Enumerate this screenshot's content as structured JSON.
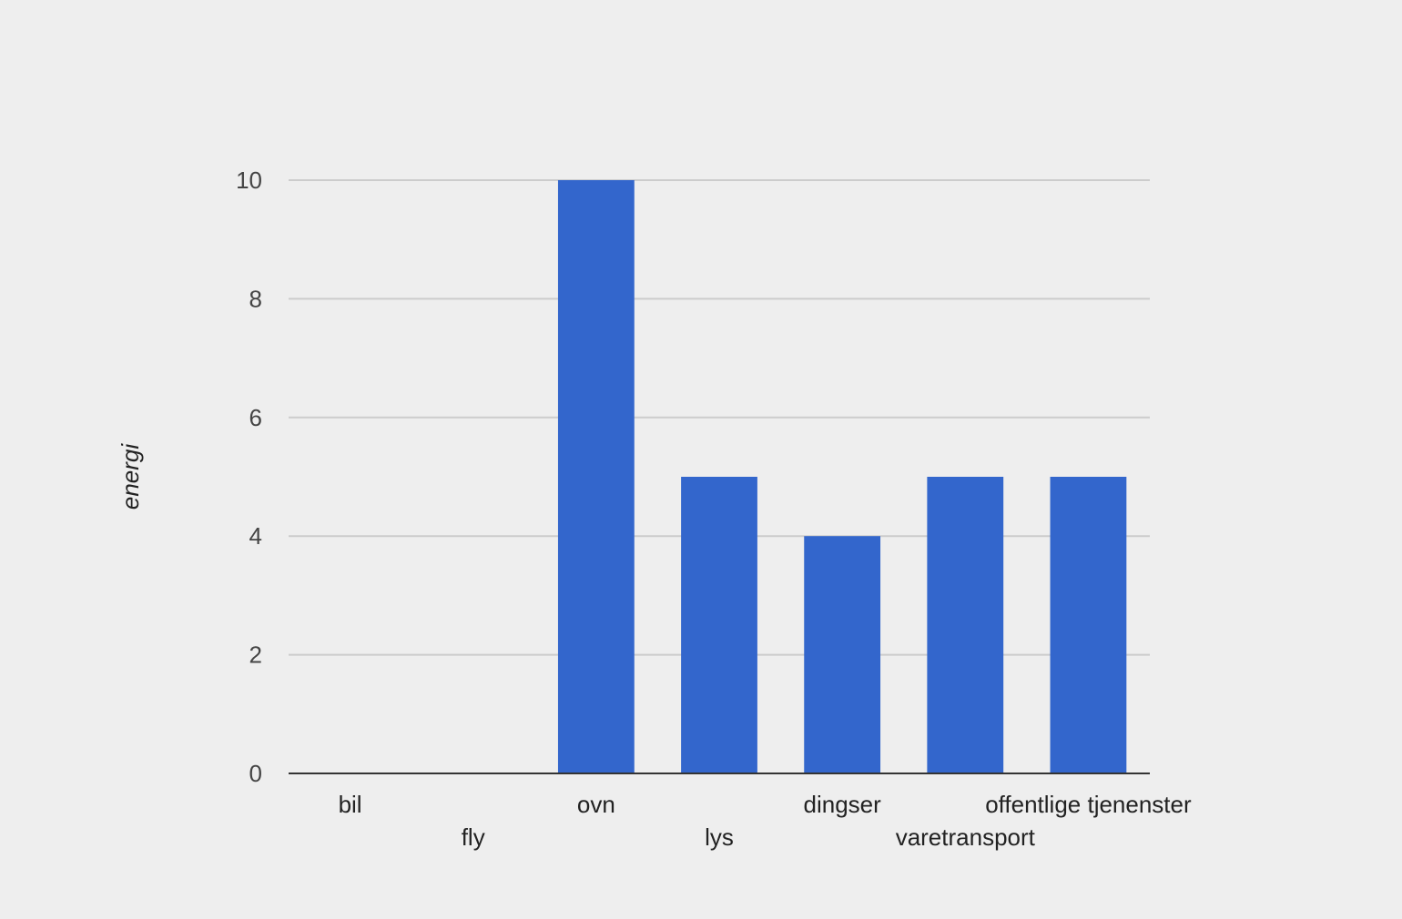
{
  "chart_data": {
    "type": "bar",
    "title": "",
    "xlabel": "",
    "ylabel": "energi",
    "categories": [
      "bil",
      "fly",
      "ovn",
      "lys",
      "dingser",
      "varetransport",
      "offentlige tjenenster"
    ],
    "values": [
      0,
      0,
      10,
      5,
      4,
      5,
      5
    ],
    "ylim": [
      0,
      10
    ],
    "yticks": [
      "0",
      "2",
      "4",
      "6",
      "8",
      "10"
    ],
    "grid": true,
    "legend": "none",
    "bar_color": "#3366cc"
  }
}
